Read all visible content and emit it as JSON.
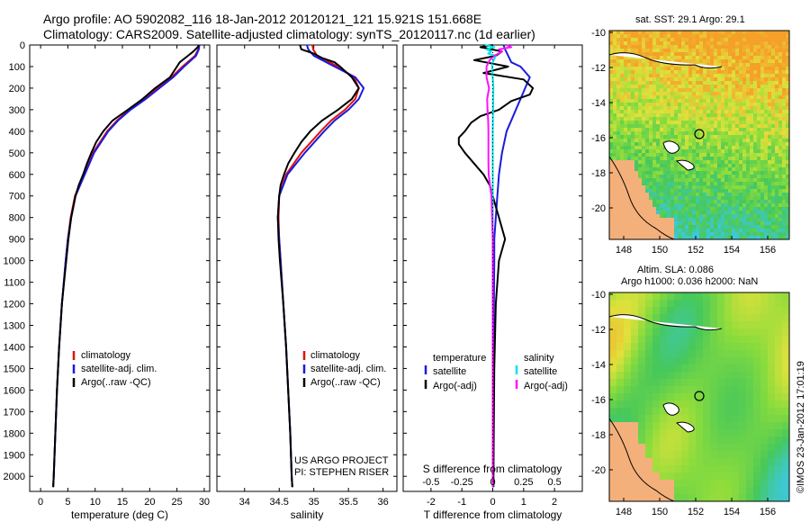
{
  "header": {
    "line1": "Argo profile: AO 5902082_116 18-Jan-2012 20120121_121 15.921S 151.668E",
    "line2": "Climatology: CARS2009. Satellite-adjusted climatology: synTS_20120117.nc (1d earlier)"
  },
  "colors": {
    "climatology": "#e01010",
    "satellite": "#1a1ae0",
    "argo": "#000000",
    "sal_satellite": "#00e5e5",
    "sal_argo": "#ff10ff",
    "land": "#f4b07a",
    "green": "#33cc33"
  },
  "chart_data": [
    {
      "type": "line",
      "id": "temperature",
      "xlabel": "temperature (deg C)",
      "ylabel": "",
      "xlim": [
        -2,
        31
      ],
      "ylim": [
        2070,
        0
      ],
      "xticks": [
        0,
        5,
        10,
        15,
        20,
        25,
        30
      ],
      "yticks": [
        0,
        100,
        200,
        300,
        400,
        500,
        600,
        700,
        800,
        900,
        1000,
        1100,
        1200,
        1300,
        1400,
        1500,
        1600,
        1700,
        1800,
        1900,
        2000
      ],
      "legend": [
        "climatology",
        "satellite-adj. clim.",
        "Argo(..raw -QC)"
      ],
      "series": [
        {
          "name": "climatology",
          "depth": [
            0,
            20,
            50,
            100,
            150,
            200,
            250,
            300,
            350,
            400,
            500,
            600,
            700,
            800,
            900,
            1000,
            1200,
            1400,
            1600,
            1800,
            2000,
            2050
          ],
          "values": [
            29.0,
            28.9,
            28.3,
            26.0,
            24.0,
            21.5,
            19.0,
            16.3,
            14.0,
            12.2,
            9.6,
            8.0,
            6.3,
            5.5,
            5.0,
            4.6,
            3.9,
            3.4,
            3.0,
            2.7,
            2.4,
            2.3
          ]
        },
        {
          "name": "satellite-adj. clim.",
          "depth": [
            0,
            20,
            50,
            100,
            150,
            200,
            250,
            300,
            350,
            400,
            500,
            600,
            700,
            800,
            900,
            1000,
            1200,
            1400,
            1600,
            1800,
            2000,
            2050
          ],
          "values": [
            29.1,
            29.0,
            28.5,
            26.3,
            24.3,
            21.8,
            19.3,
            16.5,
            14.2,
            12.4,
            9.8,
            8.1,
            6.4,
            5.6,
            5.0,
            4.6,
            3.9,
            3.4,
            3.0,
            2.7,
            2.4,
            2.3
          ]
        },
        {
          "name": "Argo(..raw -QC)",
          "depth": [
            0,
            10,
            30,
            50,
            80,
            100,
            150,
            200,
            250,
            300,
            350,
            400,
            450,
            500,
            550,
            600,
            650,
            700,
            800,
            900,
            1000,
            1200,
            1400,
            1600,
            1800,
            2000,
            2050
          ],
          "values": [
            29.0,
            28.8,
            28.0,
            27.0,
            25.5,
            25.0,
            23.7,
            21.0,
            18.7,
            16.0,
            13.2,
            11.5,
            10.2,
            9.3,
            8.5,
            7.8,
            7.0,
            6.4,
            5.6,
            5.1,
            4.7,
            3.9,
            3.4,
            3.0,
            2.7,
            2.4,
            2.3
          ]
        }
      ]
    },
    {
      "type": "line",
      "id": "salinity",
      "xlabel": "salinity",
      "xlim": [
        33.6,
        36.2
      ],
      "ylim": [
        2070,
        0
      ],
      "xticks": [
        34,
        34.5,
        35,
        35.5,
        36
      ],
      "legend": [
        "climatology",
        "satellite-adj. clim.",
        "Argo(..raw -QC)"
      ],
      "series": [
        {
          "name": "climatology",
          "depth": [
            0,
            20,
            50,
            100,
            150,
            200,
            250,
            300,
            350,
            400,
            500,
            600,
            700,
            800,
            900,
            1000,
            1200,
            1400,
            1600,
            1800,
            2000,
            2050
          ],
          "values": [
            34.98,
            34.99,
            35.05,
            35.35,
            35.58,
            35.65,
            35.6,
            35.45,
            35.25,
            35.1,
            34.82,
            34.6,
            34.5,
            34.49,
            34.5,
            34.52,
            34.56,
            34.6,
            34.63,
            34.66,
            34.68,
            34.69
          ]
        },
        {
          "name": "satellite-adj. clim.",
          "depth": [
            0,
            20,
            50,
            100,
            150,
            200,
            250,
            300,
            350,
            400,
            500,
            600,
            700,
            800,
            900,
            1000,
            1200,
            1400,
            1600,
            1800,
            2000,
            2050
          ],
          "values": [
            34.9,
            34.92,
            35.0,
            35.3,
            35.6,
            35.72,
            35.65,
            35.5,
            35.3,
            35.15,
            34.87,
            34.62,
            34.5,
            34.48,
            34.5,
            34.52,
            34.56,
            34.6,
            34.63,
            34.66,
            34.68,
            34.69
          ]
        },
        {
          "name": "Argo(..raw -QC)",
          "depth": [
            0,
            20,
            40,
            60,
            80,
            100,
            150,
            200,
            250,
            300,
            350,
            400,
            450,
            500,
            550,
            600,
            650,
            700,
            800,
            900,
            1000,
            1200,
            1400,
            1600,
            1800,
            2000,
            2050
          ],
          "values": [
            34.8,
            34.82,
            35.0,
            35.12,
            35.3,
            35.38,
            35.55,
            35.65,
            35.55,
            35.35,
            35.12,
            34.95,
            34.82,
            34.72,
            34.63,
            34.57,
            34.52,
            34.5,
            34.48,
            34.49,
            34.51,
            34.56,
            34.6,
            34.63,
            34.66,
            34.68,
            34.69
          ]
        }
      ]
    },
    {
      "type": "line",
      "id": "difference",
      "xlabel": "T difference from climatology",
      "xlabel_top": "S difference from climatology",
      "xlim": [
        -2.9,
        2.9
      ],
      "ylim": [
        2070,
        0
      ],
      "xticks": [
        -2,
        -1,
        0,
        1,
        2
      ],
      "xticks_top": [
        "-0.5",
        "-0.25",
        "0",
        "0.25",
        "0.5"
      ],
      "legend_temperature_title": "temperature",
      "legend_salinity_title": "salinity",
      "legend_temperature": [
        "satellite",
        "Argo(-adj)"
      ],
      "legend_salinity": [
        "satellite",
        "Argo(-adj)"
      ],
      "series": [
        {
          "name": "T satellite",
          "depth": [
            0,
            20,
            50,
            80,
            100,
            150,
            200,
            250,
            300,
            350,
            400,
            500,
            600,
            700,
            800,
            900,
            1000,
            1500,
            2050
          ],
          "values": [
            0.35,
            0.4,
            0.5,
            0.6,
            0.9,
            1.2,
            1.05,
            0.9,
            0.75,
            0.6,
            0.45,
            0.3,
            0.2,
            0.15,
            0.1,
            0.05,
            0.05,
            0.02,
            0.02
          ]
        },
        {
          "name": "T Argo(-adj)",
          "depth": [
            0,
            10,
            30,
            50,
            70,
            100,
            130,
            160,
            200,
            230,
            260,
            300,
            330,
            360,
            400,
            430,
            460,
            500,
            550,
            600,
            650,
            700,
            750,
            800,
            850,
            900,
            950,
            1000,
            1200,
            1500,
            2050
          ],
          "values": [
            0.0,
            -0.4,
            0.3,
            0.1,
            -0.6,
            0.5,
            -0.3,
            1.0,
            1.3,
            1.2,
            0.6,
            0.2,
            -0.4,
            -0.7,
            -0.9,
            -1.1,
            -1.1,
            -0.9,
            -0.6,
            -0.3,
            -0.1,
            0.0,
            0.1,
            0.2,
            0.3,
            0.4,
            0.3,
            0.2,
            0.1,
            0.05,
            0.02
          ]
        },
        {
          "name": "S satellite",
          "depth": [
            0,
            10,
            20,
            30,
            40,
            50,
            80,
            100,
            150,
            200,
            300,
            400,
            500,
            700,
            900,
            1000,
            1500,
            2050
          ],
          "values": [
            -0.25,
            0.05,
            -0.2,
            -0.05,
            -0.15,
            0.1,
            0.0,
            -0.02,
            0.0,
            0.02,
            0.01,
            0.0,
            0.0,
            0.0,
            0.0,
            0.0,
            0.0,
            0.0
          ]
        },
        {
          "name": "S Argo(-adj)",
          "depth": [
            0,
            10,
            20,
            30,
            50,
            70,
            100,
            150,
            200,
            250,
            300,
            350,
            400,
            450,
            500,
            550,
            600,
            650,
            700,
            800,
            900,
            1000,
            1500,
            2050
          ],
          "values": [
            0.45,
            0.6,
            0.2,
            0.3,
            0.05,
            -0.1,
            -0.2,
            -0.2,
            -0.12,
            -0.18,
            -0.17,
            -0.15,
            -0.14,
            -0.14,
            -0.14,
            -0.14,
            -0.13,
            -0.09,
            -0.04,
            -0.02,
            0.0,
            0.0,
            0.0,
            0.0
          ]
        }
      ]
    }
  ],
  "annotation": {
    "line1": "US ARGO PROJECT",
    "line2": "PI: STEPHEN RISER"
  },
  "maps": {
    "sst": {
      "title": "sat. SST: 29.1  Argo: 29.1",
      "xticks": [
        "148",
        "150",
        "152",
        "154",
        "156"
      ],
      "yticks": [
        "-10",
        "-12",
        "-14",
        "-16",
        "-18",
        "-20"
      ]
    },
    "sla": {
      "title1": "Altim. SLA: 0.086",
      "title2": "Argo h1000: 0.036 h2000: NaN",
      "xticks": [
        "148",
        "150",
        "152",
        "154",
        "156"
      ],
      "yticks": [
        "-10",
        "-12",
        "-14",
        "-16",
        "-18",
        "-20"
      ]
    }
  },
  "watermark": "©IMOS 23-Jan-2012 17:01:19"
}
